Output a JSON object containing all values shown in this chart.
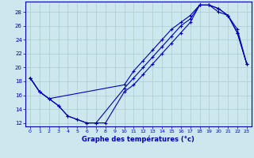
{
  "xlabel": "Graphe des températures (°c)",
  "bg_color": "#cce8ee",
  "grid_color": "#aacccc",
  "line_color": "#0000bb",
  "xlim": [
    -0.5,
    23.5
  ],
  "ylim": [
    11.5,
    29.5
  ],
  "yticks": [
    12,
    14,
    16,
    18,
    20,
    22,
    24,
    26,
    28
  ],
  "xticks": [
    0,
    1,
    2,
    3,
    4,
    5,
    6,
    7,
    8,
    9,
    10,
    11,
    12,
    13,
    14,
    15,
    16,
    17,
    18,
    19,
    20,
    21,
    22,
    23
  ],
  "line1_x": [
    0,
    1,
    2,
    3,
    4,
    5,
    6,
    7,
    8,
    10,
    11,
    12,
    13,
    14,
    15,
    16,
    17,
    18,
    19,
    20,
    21,
    22,
    23
  ],
  "line1_y": [
    18.5,
    16.5,
    15.5,
    14.5,
    13.0,
    12.5,
    12.0,
    12.0,
    12.0,
    16.5,
    17.5,
    19.0,
    20.5,
    22.0,
    23.5,
    25.0,
    26.5,
    29.0,
    29.0,
    28.0,
    27.5,
    25.0,
    20.5
  ],
  "line2_x": [
    0,
    1,
    2,
    3,
    4,
    5,
    6,
    7,
    10,
    11,
    12,
    13,
    14,
    15,
    16,
    17,
    18,
    19,
    20,
    21,
    22,
    23
  ],
  "line2_y": [
    18.5,
    16.5,
    15.5,
    14.5,
    13.0,
    12.5,
    12.0,
    12.0,
    17.0,
    18.5,
    20.0,
    21.5,
    23.0,
    24.5,
    26.0,
    27.0,
    29.0,
    29.0,
    28.5,
    27.5,
    25.0,
    20.5
  ],
  "line3_x": [
    0,
    1,
    2,
    10,
    11,
    12,
    13,
    14,
    15,
    16,
    17,
    18,
    19,
    20,
    21,
    22,
    23
  ],
  "line3_y": [
    18.5,
    16.5,
    15.5,
    17.5,
    19.5,
    21.0,
    22.5,
    24.0,
    25.5,
    26.5,
    27.5,
    29.0,
    29.0,
    28.5,
    27.5,
    25.5,
    20.5
  ]
}
